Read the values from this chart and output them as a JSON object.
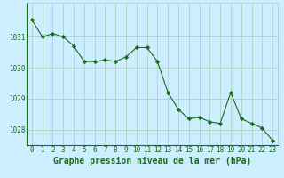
{
  "x": [
    0,
    1,
    2,
    3,
    4,
    5,
    6,
    7,
    8,
    9,
    10,
    11,
    12,
    13,
    14,
    15,
    16,
    17,
    18,
    19,
    20,
    21,
    22,
    23
  ],
  "y": [
    1031.55,
    1031.0,
    1031.1,
    1031.0,
    1030.7,
    1030.2,
    1030.2,
    1030.25,
    1030.2,
    1030.35,
    1030.65,
    1030.65,
    1030.2,
    1029.2,
    1028.65,
    1028.35,
    1028.4,
    1028.25,
    1028.2,
    1029.2,
    1028.35,
    1028.2,
    1028.05,
    1027.65
  ],
  "line_color": "#1a6b1a",
  "marker": "D",
  "marker_size": 2.2,
  "bg_color": "#cceeff",
  "grid_color": "#aaccbb",
  "xlabel": "Graphe pression niveau de la mer (hPa)",
  "xlabel_fontsize": 7.0,
  "xlabel_color": "#1a6b1a",
  "tick_color": "#1a6b1a",
  "tick_fontsize": 5.5,
  "ylim": [
    1027.5,
    1032.1
  ],
  "yticks": [
    1028,
    1029,
    1030,
    1031
  ],
  "xlim": [
    -0.5,
    23.5
  ],
  "xticks": [
    0,
    1,
    2,
    3,
    4,
    5,
    6,
    7,
    8,
    9,
    10,
    11,
    12,
    13,
    14,
    15,
    16,
    17,
    18,
    19,
    20,
    21,
    22,
    23
  ]
}
